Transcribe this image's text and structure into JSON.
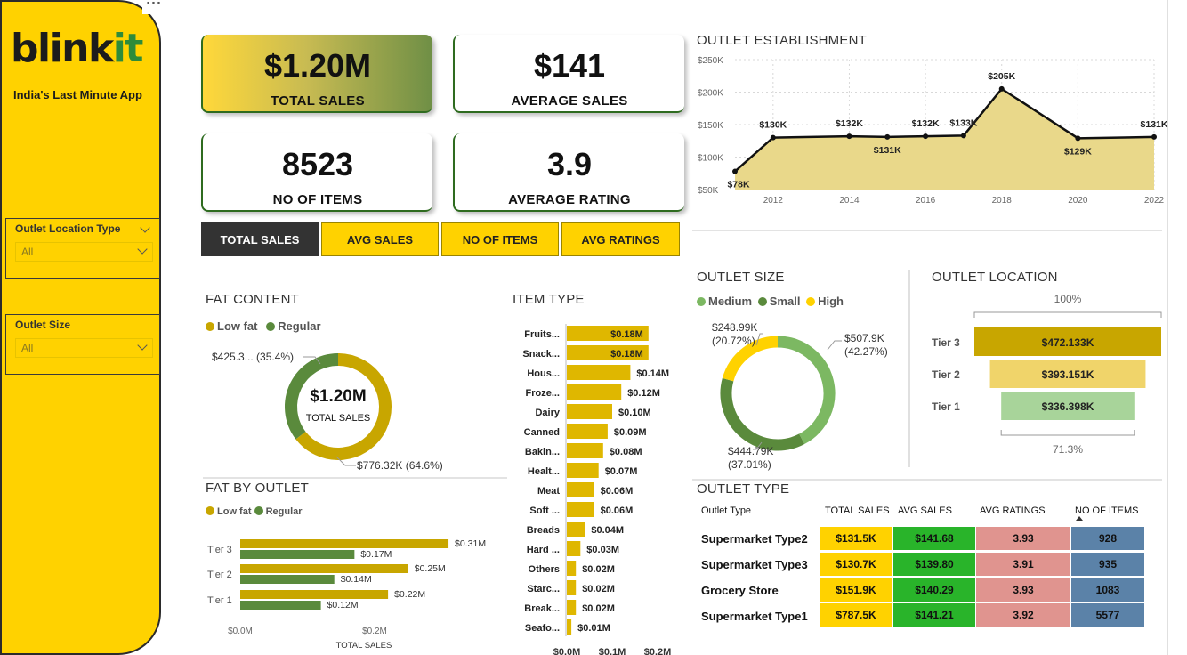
{
  "app": {
    "brand_prefix": "blink",
    "brand_suffix": "it",
    "tagline": "India's Last Minute App",
    "more_options": "···"
  },
  "filters": {
    "location": {
      "title": "Outlet Location Type",
      "value": "All"
    },
    "size": {
      "title": "Outlet Size",
      "value": "All"
    }
  },
  "kpis": [
    {
      "value": "$1.20M",
      "label": "TOTAL SALES"
    },
    {
      "value": "$141",
      "label": "AVERAGE SALES"
    },
    {
      "value": "8523",
      "label": "NO OF ITEMS"
    },
    {
      "value": "3.9",
      "label": "AVERAGE RATING"
    }
  ],
  "toggles": [
    {
      "label": "TOTAL SALES",
      "active": true
    },
    {
      "label": "AVG SALES",
      "active": false
    },
    {
      "label": "NO OF ITEMS",
      "active": false
    },
    {
      "label": "AVG RATINGS",
      "active": false
    }
  ],
  "colors": {
    "yellow": "#ffd200",
    "gold": "#c8a600",
    "green": "#5a8a3c",
    "light_green": "#7cb862",
    "dark": "#333333"
  },
  "chart_data": [
    {
      "type": "area",
      "title": "OUTLET ESTABLISHMENT",
      "x": [
        2011,
        2012,
        2014,
        2015,
        2016,
        2017,
        2018,
        2020,
        2022
      ],
      "values": [
        78,
        130,
        132,
        131,
        132,
        133,
        205,
        129,
        131
      ],
      "point_labels": [
        "$78K",
        "$130K",
        "$132K",
        "$131K",
        "$132K",
        "$133K",
        "$205K",
        "$129K",
        "$131K"
      ],
      "x_ticks": [
        "2012",
        "2014",
        "2016",
        "2018",
        "2020",
        "2022"
      ],
      "y_ticks": [
        "$250K",
        "$200K",
        "$150K",
        "$100K",
        "$50K"
      ],
      "ylim": [
        50,
        250
      ],
      "grid": true
    },
    {
      "type": "pie",
      "title": "FAT CONTENT",
      "legend": [
        "Low fat",
        "Regular"
      ],
      "center_value": "$1.20M",
      "center_label": "TOTAL SALES",
      "values": [
        776.32,
        425.3
      ],
      "labels": [
        "$776.32K (64.6%)",
        "$425.3... (35.4%)"
      ]
    },
    {
      "type": "bar",
      "title": "FAT BY OUTLET",
      "legend": [
        "Low fat",
        "Regular"
      ],
      "categories": [
        "Tier 3",
        "Tier 2",
        "Tier 1"
      ],
      "series": [
        {
          "name": "Low fat",
          "values": [
            0.31,
            0.25,
            0.22
          ],
          "labels": [
            "$0.31M",
            "$0.25M",
            "$0.22M"
          ]
        },
        {
          "name": "Regular",
          "values": [
            0.17,
            0.14,
            0.12
          ],
          "labels": [
            "$0.17M",
            "$0.14M",
            "$0.12M"
          ]
        }
      ],
      "x_ticks": [
        "$0.0M",
        "$0.2M"
      ],
      "xlabel": "TOTAL SALES",
      "xlim": [
        0,
        0.4
      ]
    },
    {
      "type": "bar",
      "title": "ITEM TYPE",
      "categories": [
        "Fruits...",
        "Snack...",
        "Hous...",
        "Froze...",
        "Dairy",
        "Canned",
        "Bakin...",
        "Healt...",
        "Meat",
        "Soft ...",
        "Breads",
        "Hard ...",
        "Others",
        "Starc...",
        "Break...",
        "Seafo..."
      ],
      "values": [
        0.18,
        0.18,
        0.14,
        0.12,
        0.1,
        0.09,
        0.08,
        0.07,
        0.06,
        0.06,
        0.04,
        0.03,
        0.02,
        0.02,
        0.02,
        0.01
      ],
      "labels": [
        "$0.18M",
        "$0.18M",
        "$0.14M",
        "$0.12M",
        "$0.10M",
        "$0.09M",
        "$0.08M",
        "$0.07M",
        "$0.06M",
        "$0.06M",
        "$0.04M",
        "$0.03M",
        "$0.02M",
        "$0.02M",
        "$0.02M",
        "$0.01M"
      ],
      "x_ticks": [
        "$0.0M",
        "$0.1M",
        "$0.2M"
      ],
      "xlim": [
        0,
        0.2
      ]
    },
    {
      "type": "pie",
      "title": "OUTLET SIZE",
      "legend": [
        "Medium",
        "Small",
        "High"
      ],
      "values": [
        507.9,
        444.79,
        248.99
      ],
      "labels": [
        "$507.9K\n(42.27%)",
        "$444.79K\n(37.01%)",
        "$248.99K\n(20.72%)"
      ]
    },
    {
      "type": "bar",
      "title": "OUTLET LOCATION",
      "categories": [
        "Tier 3",
        "Tier 2",
        "Tier 1"
      ],
      "values": [
        472.133,
        393.151,
        336.398
      ],
      "labels": [
        "$472.133K",
        "$393.151K",
        "$336.398K"
      ],
      "top_pct": "100%",
      "bottom_pct": "71.3%"
    },
    {
      "type": "table",
      "title": "OUTLET TYPE",
      "columns": [
        "Outlet Type",
        "TOTAL SALES",
        "AVG SALES",
        "AVG RATINGS",
        "NO OF ITEMS"
      ],
      "rows": [
        [
          "Supermarket Type2",
          "$131.5K",
          "$141.68",
          "3.93",
          "928"
        ],
        [
          "Supermarket Type3",
          "$130.7K",
          "$139.80",
          "3.91",
          "935"
        ],
        [
          "Grocery Store",
          "$151.9K",
          "$140.29",
          "3.93",
          "1083"
        ],
        [
          "Supermarket Type1",
          "$787.5K",
          "$141.21",
          "3.92",
          "5577"
        ]
      ]
    }
  ]
}
